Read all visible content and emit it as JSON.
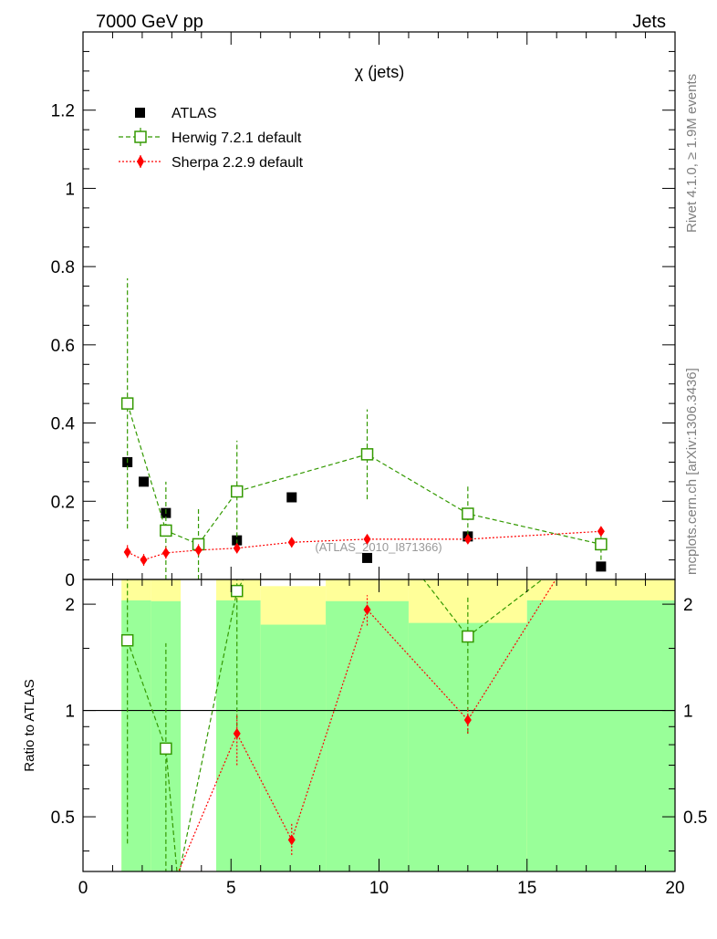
{
  "header": {
    "left": "7000 GeV pp",
    "right": "Jets"
  },
  "side_labels": {
    "rivet": "Rivet 4.1.0, ≥ 1.9M events",
    "mcplots": "mcplots.cern.ch [arXiv:1306.3436]"
  },
  "chart_data": [
    {
      "panel": "main",
      "type": "scatter",
      "title": "χ (jets)",
      "watermark": "(ATLAS_2010_I871366)",
      "xlabel": "",
      "ylabel": "",
      "xlim": [
        0,
        20
      ],
      "ylim": [
        0,
        1.4
      ],
      "yticks": [
        0,
        0.2,
        0.4,
        0.6,
        0.8,
        1,
        1.2
      ],
      "ytick_labels": [
        "0",
        "0.2",
        "0.4",
        "0.6",
        "0.8",
        "1",
        "1.2"
      ],
      "legend": {
        "placement": "top-left",
        "entries": [
          "ATLAS",
          "Herwig 7.2.1 default",
          "Sherpa 2.2.9 default"
        ]
      },
      "series": [
        {
          "name": "ATLAS",
          "style": "data",
          "color": "#000000",
          "x": [
            1.5,
            2.05,
            2.8,
            5.2,
            7.05,
            9.6,
            13.0,
            17.5
          ],
          "y": [
            0.3,
            0.25,
            0.17,
            0.1,
            0.21,
            0.055,
            0.11,
            0.033
          ]
        },
        {
          "name": "Herwig 7.2.1 default",
          "style": "herwig",
          "color": "#339900",
          "x": [
            1.5,
            2.8,
            3.9,
            5.2,
            9.6,
            13.0,
            17.5
          ],
          "y": [
            0.45,
            0.125,
            0.09,
            0.225,
            0.32,
            0.168,
            0.09
          ],
          "ylo": [
            0.13,
            0.0,
            0.0,
            0.09,
            0.205,
            0.095,
            0.05
          ],
          "yhi": [
            0.77,
            0.25,
            0.185,
            0.355,
            0.435,
            0.24,
            0.13
          ]
        },
        {
          "name": "Sherpa 2.2.9 default",
          "style": "sherpa",
          "color": "#ff0000",
          "x": [
            1.5,
            2.05,
            2.8,
            3.9,
            5.2,
            7.05,
            9.6,
            13.0,
            17.5
          ],
          "y": [
            0.07,
            0.05,
            0.068,
            0.075,
            0.08,
            0.095,
            0.103,
            0.103,
            0.123
          ],
          "ylo": [
            0.055,
            0.035,
            0.053,
            0.06,
            0.067,
            0.082,
            0.093,
            0.093,
            0.112
          ],
          "yhi": [
            0.088,
            0.065,
            0.083,
            0.09,
            0.095,
            0.108,
            0.115,
            0.115,
            0.134
          ]
        }
      ]
    },
    {
      "panel": "ratio",
      "type": "scatter",
      "ylabel": "Ratio to ATLAS",
      "xlim": [
        0,
        20
      ],
      "ylim": [
        0.35,
        2.35
      ],
      "yscale": "log",
      "reference": 1,
      "yticks": [
        0.5,
        1,
        2
      ],
      "ytick_labels": [
        "0.5",
        "1",
        "2"
      ],
      "xticks": [
        0,
        5,
        10,
        15,
        20
      ],
      "xtick_labels": [
        "0",
        "5",
        "10",
        "15",
        "20"
      ],
      "bands": [
        {
          "x0": 1.3,
          "x1": 2.3,
          "stat_lo": 0.35,
          "stat_hi": 2.05,
          "tot_lo": 0.35,
          "tot_hi": 2.4
        },
        {
          "x0": 2.3,
          "x1": 3.3,
          "stat_lo": 0.35,
          "stat_hi": 2.04,
          "tot_lo": 0.35,
          "tot_hi": 2.4
        },
        {
          "x0": 4.5,
          "x1": 6.0,
          "stat_lo": 0.35,
          "stat_hi": 2.05,
          "tot_lo": 0.35,
          "tot_hi": 2.4
        },
        {
          "x0": 6.0,
          "x1": 8.2,
          "stat_lo": 0.35,
          "stat_hi": 1.75,
          "tot_lo": 0.35,
          "tot_hi": 2.25
        },
        {
          "x0": 8.2,
          "x1": 11.0,
          "stat_lo": 0.35,
          "stat_hi": 2.04,
          "tot_lo": 0.35,
          "tot_hi": 2.4
        },
        {
          "x0": 11.0,
          "x1": 15.0,
          "stat_lo": 0.35,
          "stat_hi": 1.77,
          "tot_lo": 0.35,
          "tot_hi": 2.4
        },
        {
          "x0": 15.0,
          "x1": 20.0,
          "stat_lo": 0.35,
          "stat_hi": 2.05,
          "tot_lo": 0.35,
          "tot_hi": 2.4
        }
      ],
      "series": [
        {
          "name": "Herwig 7.2.1 default",
          "style": "herwig",
          "color": "#339900",
          "x": [
            1.5,
            2.8,
            5.2,
            13.0
          ],
          "y": [
            1.58,
            0.78,
            2.18,
            1.62
          ],
          "ylo": [
            0.42,
            0.3,
            0.9,
            0.86
          ],
          "yhi": [
            2.6,
            1.55,
            2.6,
            2.1
          ],
          "line_x": [
            1.5,
            2.8,
            3.2,
            5.2,
            5.7,
            11.1,
            13.0,
            16.2
          ],
          "line_y": [
            1.58,
            0.78,
            0.33,
            2.18,
            2.6,
            2.6,
            1.62,
            2.6
          ]
        },
        {
          "name": "Sherpa 2.2.9 default",
          "style": "sherpa",
          "color": "#ff0000",
          "x": [
            5.2,
            7.05,
            9.6,
            13.0
          ],
          "y": [
            0.86,
            0.43,
            1.93,
            0.94
          ],
          "ylo": [
            0.7,
            0.39,
            1.74,
            0.86
          ],
          "yhi": [
            0.98,
            0.48,
            2.12,
            1.02
          ],
          "line_x": [
            3.1,
            5.2,
            7.05,
            9.6,
            13.0,
            16.3
          ],
          "line_y": [
            0.33,
            0.86,
            0.43,
            1.93,
            0.94,
            2.6
          ]
        }
      ]
    }
  ]
}
